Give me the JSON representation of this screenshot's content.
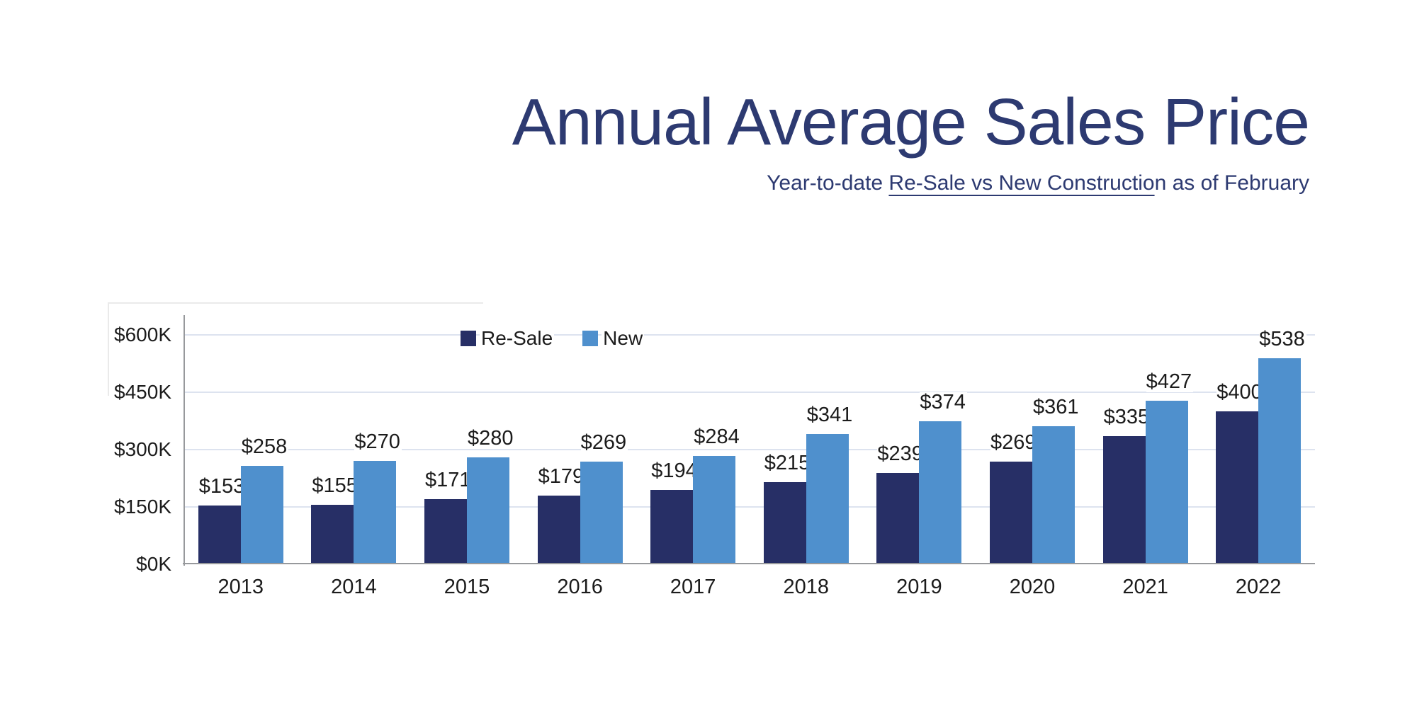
{
  "title": "Annual Average Sales Price",
  "subtitle": {
    "prefix": "Year-to-date ",
    "underlined": "Re-Sale vs New Constructio",
    "suffix": "n as of February"
  },
  "colors": {
    "title_navy": "#2d3a71",
    "bar_resale": "#272f66",
    "bar_new": "#4f90cd",
    "grid": "#dde3ef",
    "axis": "#97999c",
    "text_dark": "#1c1c1c"
  },
  "chart_data": {
    "type": "bar",
    "title": "Annual Average Sales Price",
    "subtitle": "Year-to-date Re-Sale vs New Construction as of February",
    "categories": [
      "2013",
      "2014",
      "2015",
      "2016",
      "2017",
      "2018",
      "2019",
      "2020",
      "2021",
      "2022"
    ],
    "series": [
      {
        "name": "Re-Sale",
        "color_key": "bar_resale",
        "values": [
          153,
          155,
          171,
          179,
          194,
          215,
          239,
          269,
          335,
          400
        ]
      },
      {
        "name": "New",
        "color_key": "bar_new",
        "values": [
          258,
          270,
          280,
          269,
          284,
          341,
          374,
          361,
          427,
          538
        ]
      }
    ],
    "value_label_prefix": "$",
    "ytick_values": [
      0,
      150,
      300,
      450,
      600
    ],
    "ytick_labels": [
      "$0K",
      "$150K",
      "$300K",
      "$450K",
      "$600K"
    ],
    "ylim": [
      0,
      600
    ],
    "yunit": "thousand USD",
    "grid": true,
    "legend_position": "top-center",
    "legend_entries": [
      "Re-Sale",
      "New"
    ]
  }
}
